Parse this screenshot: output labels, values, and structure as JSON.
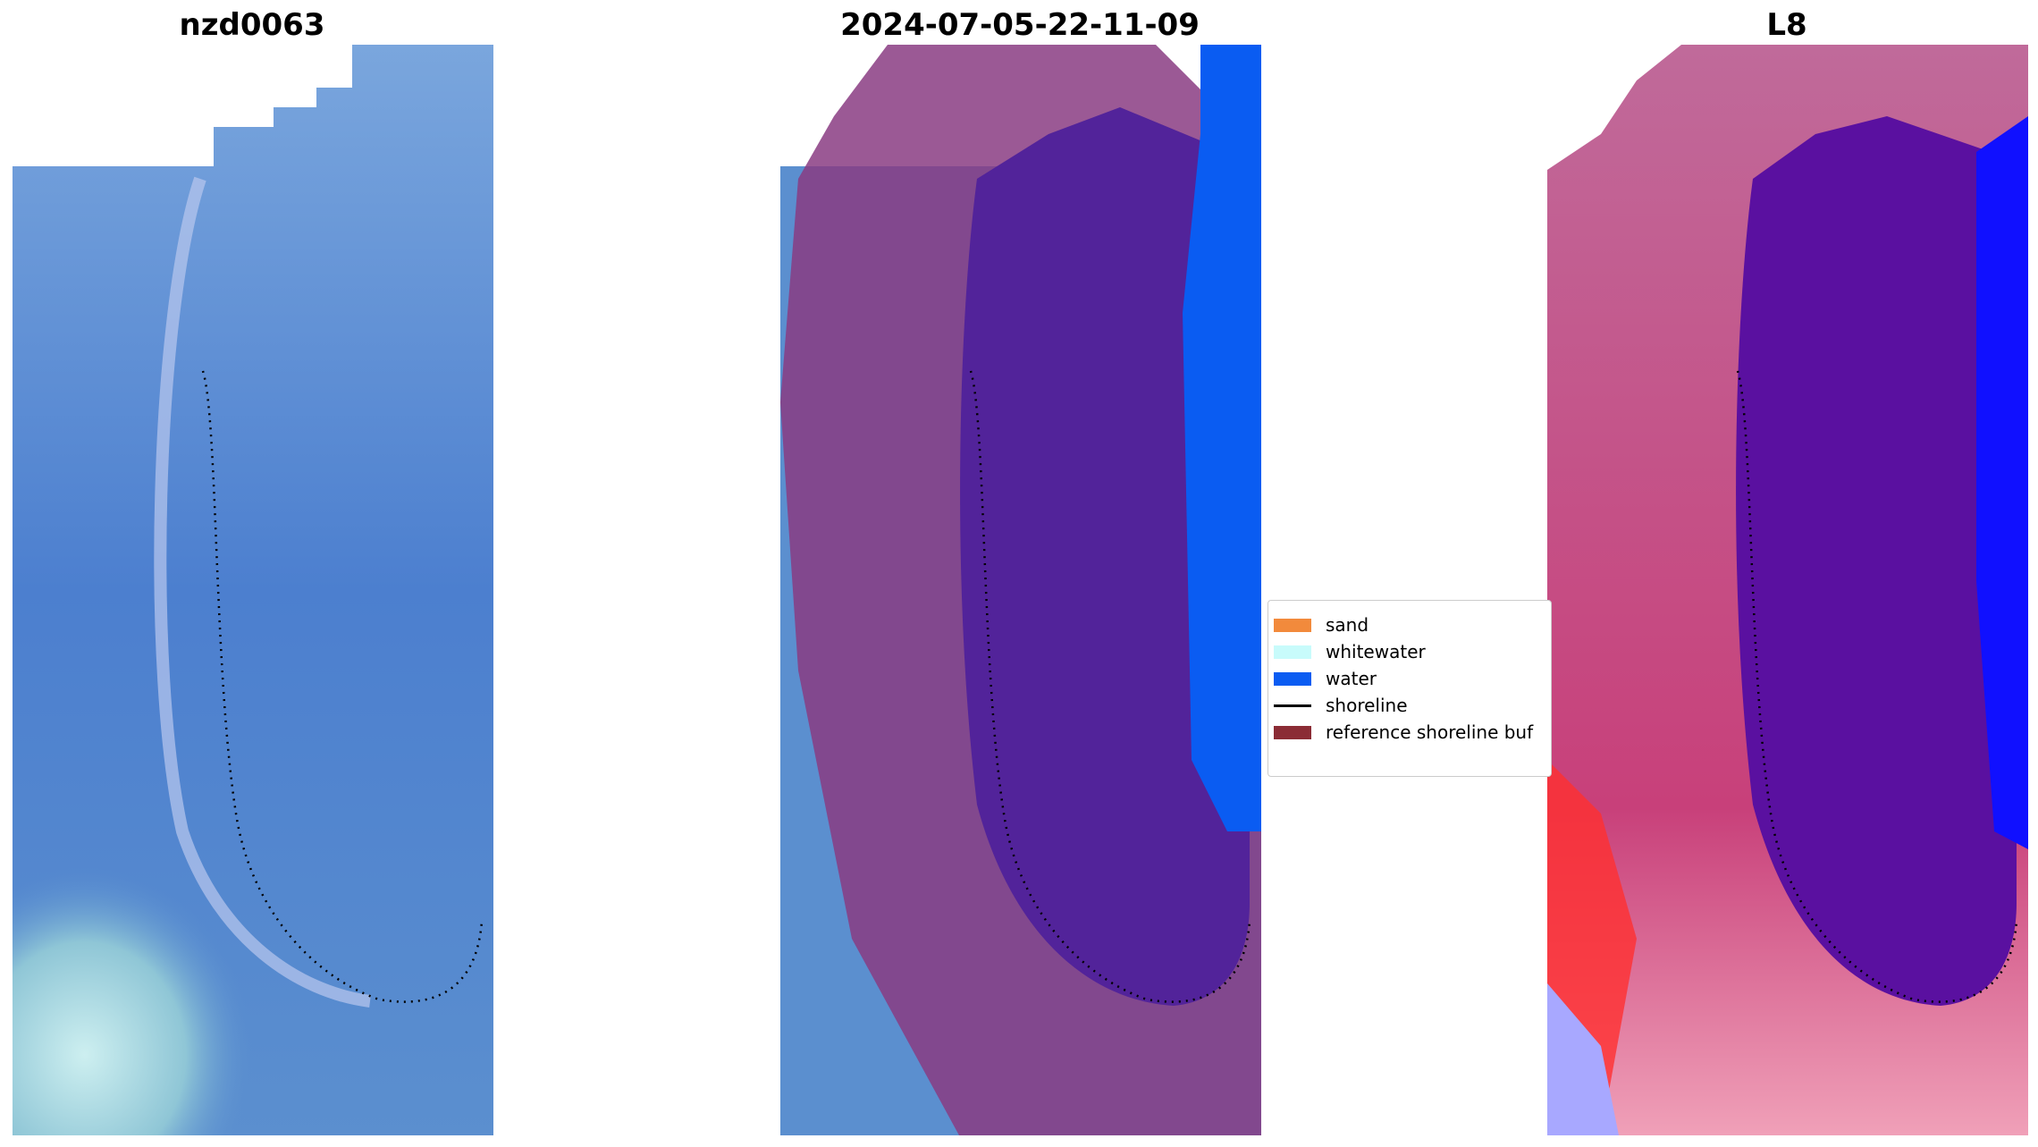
{
  "panels": [
    {
      "title": "nzd0063"
    },
    {
      "title": "2024-07-05-22-11-09"
    },
    {
      "title": "L8"
    }
  ],
  "legend": {
    "items": [
      {
        "label": "sand",
        "color": "#f28a3c",
        "kind": "patch"
      },
      {
        "label": "whitewater",
        "color": "#c8fbfb",
        "kind": "patch"
      },
      {
        "label": "water",
        "color": "#0a5cf2",
        "kind": "patch"
      },
      {
        "label": "shoreline",
        "color": "#000000",
        "kind": "line"
      },
      {
        "label": "reference shoreline buf",
        "color": "#8b2c35",
        "kind": "patch"
      }
    ]
  },
  "colors": {
    "rgb_water": "#4a7bcc",
    "rgb_shallow": "#6aa0d8",
    "buffer_overlay": "#7a2e7a",
    "water_class": "#0a5cf2",
    "index_red": "#ff2020",
    "index_blue": "#1010ff"
  }
}
